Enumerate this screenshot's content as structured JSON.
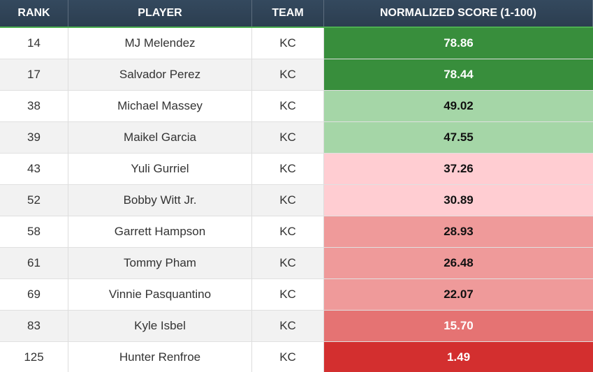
{
  "table": {
    "columns": [
      "RANK",
      "PLAYER",
      "TEAM",
      "NORMALIZED SCORE (1-100)"
    ],
    "rows": [
      {
        "rank": 14,
        "player": "MJ Melendez",
        "team": "KC",
        "score": "78.86",
        "fill": "#388e3c",
        "text_color": "#ffffff"
      },
      {
        "rank": 17,
        "player": "Salvador Perez",
        "team": "KC",
        "score": "78.44",
        "fill": "#388e3c",
        "text_color": "#ffffff"
      },
      {
        "rank": 38,
        "player": "Michael Massey",
        "team": "KC",
        "score": "49.02",
        "fill": "#a5d6a7",
        "text_color": "#111111"
      },
      {
        "rank": 39,
        "player": "Maikel Garcia",
        "team": "KC",
        "score": "47.55",
        "fill": "#a5d6a7",
        "text_color": "#111111"
      },
      {
        "rank": 43,
        "player": "Yuli Gurriel",
        "team": "KC",
        "score": "37.26",
        "fill": "#ffcdd2",
        "text_color": "#111111"
      },
      {
        "rank": 52,
        "player": "Bobby Witt Jr.",
        "team": "KC",
        "score": "30.89",
        "fill": "#ffcdd2",
        "text_color": "#111111"
      },
      {
        "rank": 58,
        "player": "Garrett Hampson",
        "team": "KC",
        "score": "28.93",
        "fill": "#ef9a9a",
        "text_color": "#111111"
      },
      {
        "rank": 61,
        "player": "Tommy Pham",
        "team": "KC",
        "score": "26.48",
        "fill": "#ef9a9a",
        "text_color": "#111111"
      },
      {
        "rank": 69,
        "player": "Vinnie Pasquantino",
        "team": "KC",
        "score": "22.07",
        "fill": "#ef9a9a",
        "text_color": "#111111"
      },
      {
        "rank": 83,
        "player": "Kyle Isbel",
        "team": "KC",
        "score": "15.70",
        "fill": "#e57373",
        "text_color": "#ffffff"
      },
      {
        "rank": 125,
        "player": "Hunter Renfroe",
        "team": "KC",
        "score": "1.49",
        "fill": "#d32f2f",
        "text_color": "#ffffff"
      }
    ]
  }
}
